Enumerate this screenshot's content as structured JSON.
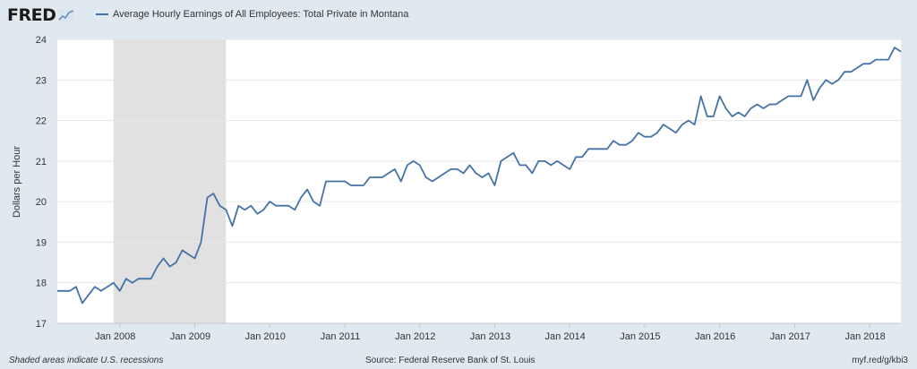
{
  "logo": {
    "text": "FRED"
  },
  "chart_data": {
    "type": "line",
    "title": "",
    "series": [
      {
        "name": "Average Hourly Earnings of All Employees: Total Private in Montana",
        "color": "#4572a7",
        "start": "2007-03",
        "values": [
          17.8,
          17.8,
          17.8,
          17.9,
          17.5,
          17.7,
          17.9,
          17.8,
          17.9,
          18.0,
          17.8,
          18.1,
          18.0,
          18.1,
          18.1,
          18.1,
          18.4,
          18.6,
          18.4,
          18.5,
          18.8,
          18.7,
          18.6,
          19.0,
          20.1,
          20.2,
          19.9,
          19.8,
          19.4,
          19.9,
          19.8,
          19.9,
          19.7,
          19.8,
          20.0,
          19.9,
          19.9,
          19.9,
          19.8,
          20.1,
          20.3,
          20.0,
          19.9,
          20.5,
          20.5,
          20.5,
          20.5,
          20.4,
          20.4,
          20.4,
          20.6,
          20.6,
          20.6,
          20.7,
          20.8,
          20.5,
          20.9,
          21.0,
          20.9,
          20.6,
          20.5,
          20.6,
          20.7,
          20.8,
          20.8,
          20.7,
          20.9,
          20.7,
          20.6,
          20.7,
          20.4,
          21.0,
          21.1,
          21.2,
          20.9,
          20.9,
          20.7,
          21.0,
          21.0,
          20.9,
          21.0,
          20.9,
          20.8,
          21.1,
          21.1,
          21.3,
          21.3,
          21.3,
          21.3,
          21.5,
          21.4,
          21.4,
          21.5,
          21.7,
          21.6,
          21.6,
          21.7,
          21.9,
          21.8,
          21.7,
          21.9,
          22.0,
          21.9,
          22.6,
          22.1,
          22.1,
          22.6,
          22.3,
          22.1,
          22.2,
          22.1,
          22.3,
          22.4,
          22.3,
          22.4,
          22.4,
          22.5,
          22.6,
          22.6,
          22.6,
          23.0,
          22.5,
          22.8,
          23.0,
          22.9,
          23.0,
          23.2,
          23.2,
          23.3,
          23.4,
          23.4,
          23.5,
          23.5,
          23.5,
          23.8,
          23.7
        ]
      }
    ],
    "x_ticks": [
      "Jan 2008",
      "Jan 2009",
      "Jan 2010",
      "Jan 2011",
      "Jan 2012",
      "Jan 2013",
      "Jan 2014",
      "Jan 2015",
      "Jan 2016",
      "Jan 2017",
      "Jan 2018"
    ],
    "xlim": [
      "2007-03",
      "2018-06"
    ],
    "ylabel": "Dollars per Hour",
    "y_ticks": [
      17,
      18,
      19,
      20,
      21,
      22,
      23,
      24
    ],
    "ylim": [
      17,
      24
    ],
    "recessions": [
      {
        "start": "2007-12",
        "end": "2009-06"
      }
    ],
    "recession_color": "#e1e1e1",
    "grid": true
  },
  "footer": {
    "left": "Shaded areas indicate U.S. recessions",
    "source": "Source: Federal Reserve Bank of St. Louis",
    "link": "myf.red/g/kbi3"
  }
}
